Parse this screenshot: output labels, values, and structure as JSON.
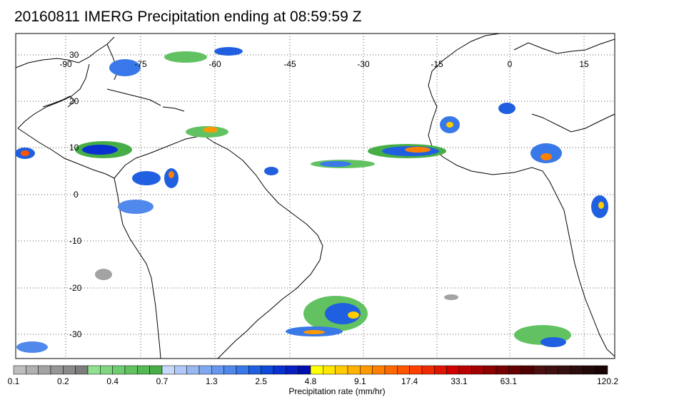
{
  "title": "20160811 IMERG Precipitation ending at 08:59:59 Z",
  "map": {
    "lon_labels": [
      "-90",
      "-75",
      "-60",
      "-45",
      "-30",
      "-15",
      "0",
      "15"
    ],
    "lat_labels": [
      "30",
      "20",
      "10",
      "0",
      "-10",
      "-20",
      "-30"
    ],
    "gridlines": "dotted",
    "land_color": "#ffffff",
    "coast_color": "#000000"
  },
  "colorbar": {
    "label": "Precipitation rate (mm/hr)",
    "tick_labels": [
      "0.1",
      "0.2",
      "0.4",
      "0.7",
      "1.3",
      "2.5",
      "4.8",
      "9.1",
      "17.4",
      "33.1",
      "63.1",
      "120.2"
    ],
    "colors": [
      "#bdbdbd",
      "#b0b0b0",
      "#a3a3a3",
      "#969696",
      "#8a8a8a",
      "#7d7d7d",
      "#8fe08f",
      "#80d680",
      "#70cc70",
      "#62c262",
      "#54b854",
      "#47ae47",
      "#c8d8f8",
      "#b0c8f5",
      "#98b8f2",
      "#80a8f0",
      "#6898ee",
      "#5088eb",
      "#3878e8",
      "#2060e0",
      "#1048d8",
      "#0a30d0",
      "#0820c0",
      "#0010b0",
      "#ffff00",
      "#ffe600",
      "#ffcc00",
      "#ffb300",
      "#ff9900",
      "#ff8000",
      "#ff6a00",
      "#ff5500",
      "#ff4000",
      "#f02a00",
      "#e01500",
      "#d00000",
      "#b80000",
      "#a00000",
      "#8c0000",
      "#780000",
      "#640000",
      "#500000",
      "#4a1010",
      "#401010",
      "#361010",
      "#2c0c0c",
      "#220808",
      "#180404"
    ]
  }
}
